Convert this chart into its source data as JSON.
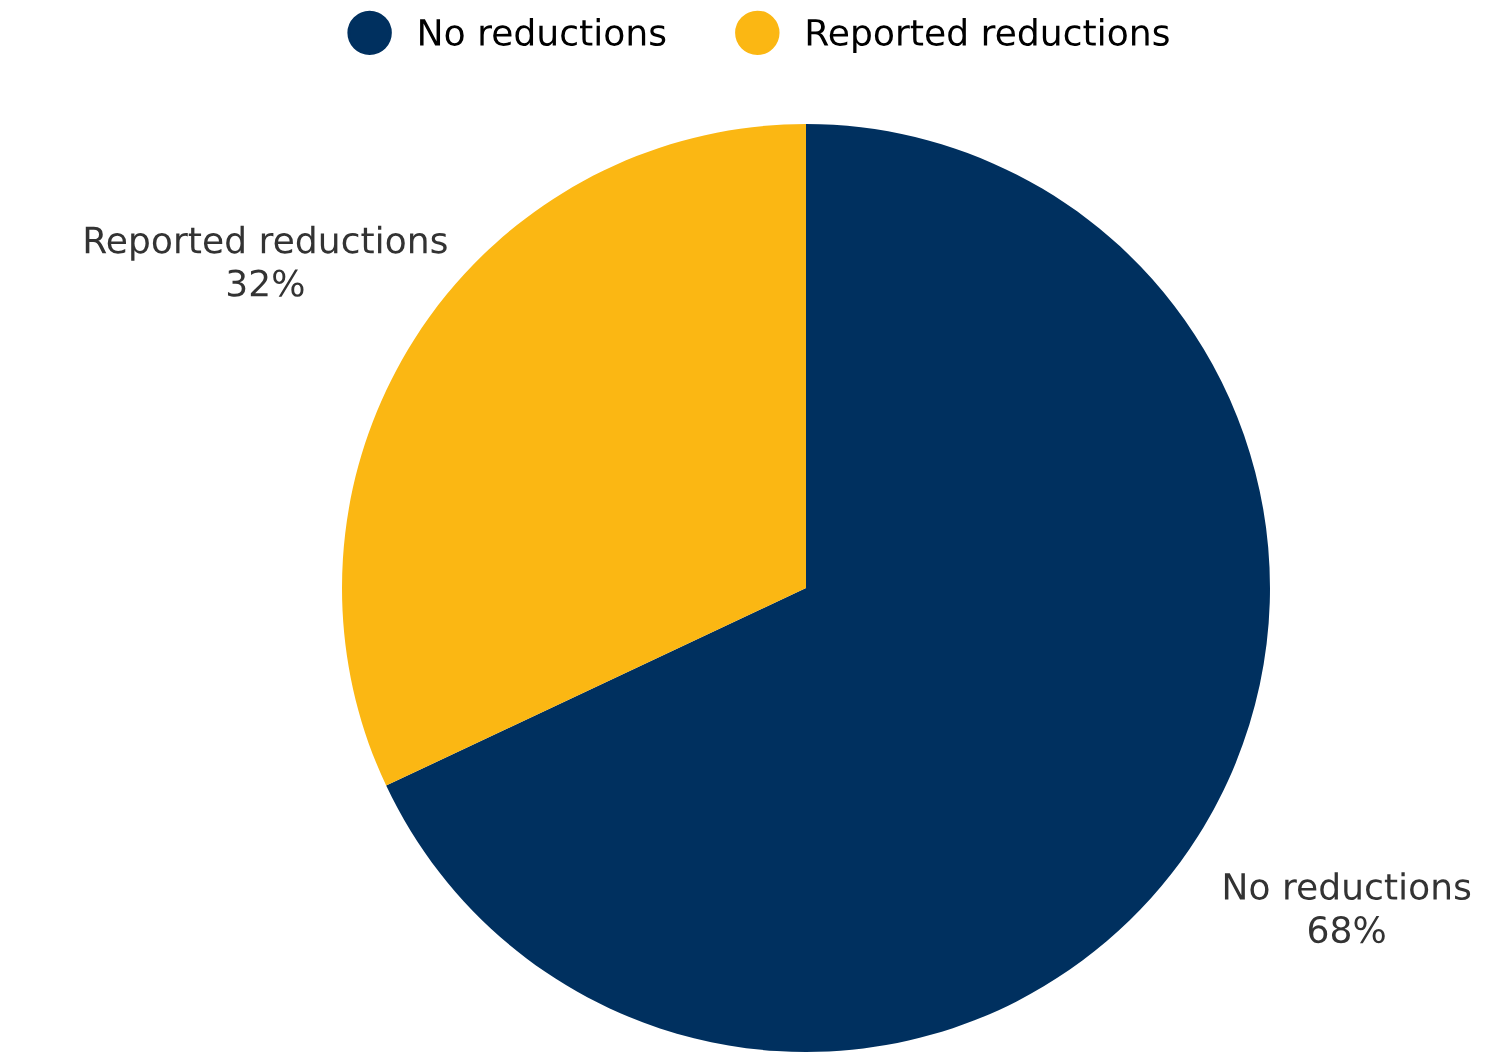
{
  "chart_data": {
    "type": "pie",
    "categories": [
      "No reductions",
      "Reported reductions"
    ],
    "values": [
      68,
      32
    ],
    "colors": [
      "#00305f",
      "#fbb713"
    ],
    "legend": "top",
    "value_labels": [
      "68%",
      "32%"
    ]
  }
}
